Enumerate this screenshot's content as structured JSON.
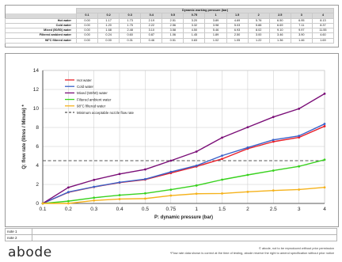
{
  "table": {
    "header_title": "Dynamic working pressure (bar)",
    "pressures": [
      "0.1",
      "0.2",
      "0.3",
      "0.4",
      "0.5",
      "0.75",
      "1",
      "1.5",
      "2",
      "2.5",
      "3",
      "4"
    ],
    "rows": [
      {
        "label": "Hot water",
        "values": [
          "0.00",
          "1.17",
          "1.73",
          "2.19",
          "2.51",
          "3.20",
          "3.89",
          "4.69",
          "5.76",
          "6.50",
          "6.95",
          "8.13"
        ]
      },
      {
        "label": "Cold water",
        "values": [
          "0.00",
          "1.20",
          "1.75",
          "2.22",
          "2.56",
          "3.32",
          "3.98",
          "5.03",
          "5.88",
          "6.69",
          "7.11",
          "8.37"
        ]
      },
      {
        "label": "Mixed (50/50) water",
        "values": [
          "0.00",
          "1.68",
          "2.48",
          "3.10",
          "3.58",
          "4.50",
          "5.46",
          "6.93",
          "8.02",
          "9.10",
          "9.97",
          "11.55"
        ]
      },
      {
        "label": "Filtered ambient water",
        "values": [
          "0.00",
          "0.24",
          "0.60",
          "0.87",
          "1.06",
          "1.45",
          "1.89",
          "2.50",
          "3.00",
          "3.46",
          "3.90",
          "4.60"
        ]
      },
      {
        "label": "98°C filtered water",
        "values": [
          "0.00",
          "0.00",
          "0.31",
          "0.46",
          "0.51",
          "0.83",
          "1.02",
          "1.05",
          "1.22",
          "1.36",
          "1.46",
          "1.69"
        ]
      }
    ]
  },
  "chart_data": {
    "type": "line",
    "xlabel": "P: dynamic pressure (bar)",
    "ylabel": "Q: flow rate (litres / Minute) *",
    "x": [
      "0.1",
      "0.2",
      "0.3",
      "0.4",
      "0.5",
      "0.75",
      "1",
      "1.5",
      "2",
      "2.5",
      "3",
      "4"
    ],
    "ylim": [
      0,
      14
    ],
    "yticks": [
      "0",
      "2",
      "4",
      "6",
      "8",
      "10",
      "12",
      "14"
    ],
    "grid": true,
    "legend_position": "top-left",
    "series": [
      {
        "name": "Hot water",
        "color": "#e8202a",
        "values": [
          0.0,
          1.17,
          1.73,
          2.19,
          2.51,
          3.2,
          3.89,
          4.69,
          5.76,
          6.5,
          6.95,
          8.13
        ]
      },
      {
        "name": "Cold water",
        "color": "#3a62c9",
        "values": [
          0.0,
          1.2,
          1.75,
          2.22,
          2.56,
          3.32,
          3.98,
          5.03,
          5.88,
          6.69,
          7.11,
          8.37
        ]
      },
      {
        "name": "Mixed (50/50) water",
        "color": "#7b0f78",
        "values": [
          0.0,
          1.68,
          2.48,
          3.1,
          3.58,
          4.5,
          5.46,
          6.93,
          8.02,
          9.1,
          9.97,
          11.55
        ]
      },
      {
        "name": "Filtered ambient water",
        "color": "#39d21f",
        "values": [
          0.0,
          0.24,
          0.6,
          0.87,
          1.06,
          1.45,
          1.89,
          2.5,
          3.0,
          3.46,
          3.9,
          4.6
        ]
      },
      {
        "name": "98°C filtered water",
        "color": "#f5b21b",
        "values": [
          0.0,
          0.0,
          0.31,
          0.46,
          0.51,
          0.83,
          1.02,
          1.05,
          1.22,
          1.36,
          1.46,
          1.69
        ]
      }
    ],
    "reference_line": {
      "name": "Minimum acceptable nozzle flow rate",
      "value": 4.5,
      "color": "#555555"
    }
  },
  "notes": [
    {
      "label": "note 1",
      "text": ""
    },
    {
      "label": "note 2",
      "text": ""
    }
  ],
  "brand": {
    "logo_text": "abode"
  },
  "footer": {
    "line1": "© abode, not to be reproduced without prior permission",
    "line2": "*Flow rate data shown is correct at the time of testing, abode reserve the right to amend specification without prior notice"
  }
}
